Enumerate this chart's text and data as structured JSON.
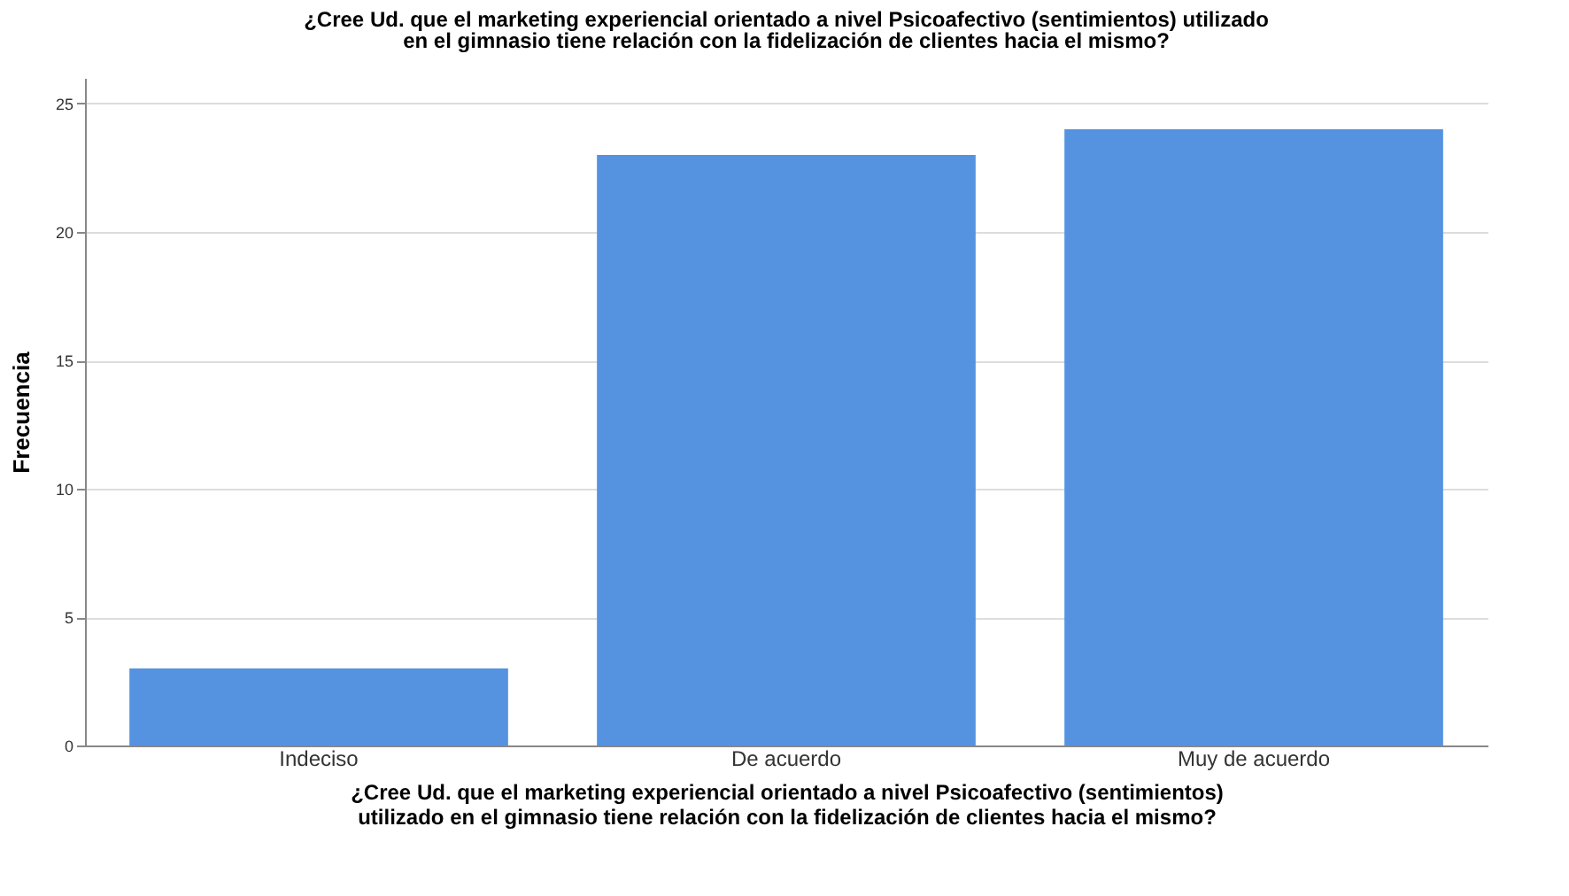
{
  "chart_data": {
    "type": "bar",
    "title": "¿Cree Ud. que el marketing experiencial orientado a nivel Psicoafectivo (sentimientos) utilizado en el gimnasio tiene relación con la fidelización de clientes hacia el mismo?",
    "xlabel": "¿Cree Ud. que el marketing experiencial orientado a nivel Psicoafectivo (sentimientos) utilizado en el gimnasio tiene relación con la fidelización de clientes hacia el mismo?",
    "ylabel": "Frecuencia",
    "categories": [
      "Indeciso",
      "De acuerdo",
      "Muy de acuerdo"
    ],
    "values": [
      3,
      23,
      24
    ],
    "color": "#5592e0",
    "ylim": [
      0,
      26
    ],
    "yticks": [
      0,
      5,
      10,
      15,
      20,
      25
    ],
    "grid": "y"
  }
}
